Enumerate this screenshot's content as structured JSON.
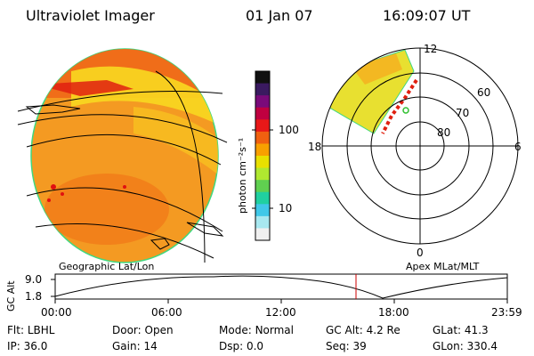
{
  "header": {
    "instrument": "Ultraviolet Imager",
    "date": "01 Jan 07",
    "time": "16:09:07 UT"
  },
  "colorbar": {
    "unit_label": "photon cm⁻²s⁻¹",
    "ticks": [
      "100",
      "10"
    ],
    "colors": [
      "#101010",
      "#3a1a60",
      "#7a0a7a",
      "#c00040",
      "#e81818",
      "#f06010",
      "#f8a000",
      "#e8e000",
      "#b0e830",
      "#60d050",
      "#20d0a0",
      "#40c8e8",
      "#a8e8f0",
      "#f0f0f0"
    ]
  },
  "polar_plot": {
    "mlat_labels": [
      "60",
      "70",
      "80"
    ],
    "mlt_labels": {
      "top": "12",
      "left": "18",
      "right": "6",
      "bottom": "0"
    }
  },
  "altitude_plot": {
    "left_title": "Geographic Lat/Lon",
    "right_title": "Apex MLat/MLT",
    "axis_label": "GC Alt",
    "y_ticks": [
      "9.0",
      "1.8"
    ],
    "x_ticks": [
      "00:00",
      "06:00",
      "12:00",
      "18:00",
      "23:59"
    ]
  },
  "status": {
    "row1": [
      {
        "label": "Flt:",
        "value": "LBHL"
      },
      {
        "label": "Door:",
        "value": "Open"
      },
      {
        "label": "Mode:",
        "value": "Normal"
      },
      {
        "label": "GC Alt:",
        "value": "4.2 Re"
      },
      {
        "label": "GLat:",
        "value": "41.3"
      }
    ],
    "row2": [
      {
        "label": "IP:",
        "value": "36.0"
      },
      {
        "label": "Gain:",
        "value": "14"
      },
      {
        "label": "Dsp:",
        "value": "0.0"
      },
      {
        "label": "Seq:",
        "value": "39"
      },
      {
        "label": "GLon:",
        "value": "330.4"
      }
    ]
  },
  "colors": {
    "orbit_marker": "#cc0000",
    "earth_disk": "#f4a020",
    "aurora": "#e0e028"
  }
}
